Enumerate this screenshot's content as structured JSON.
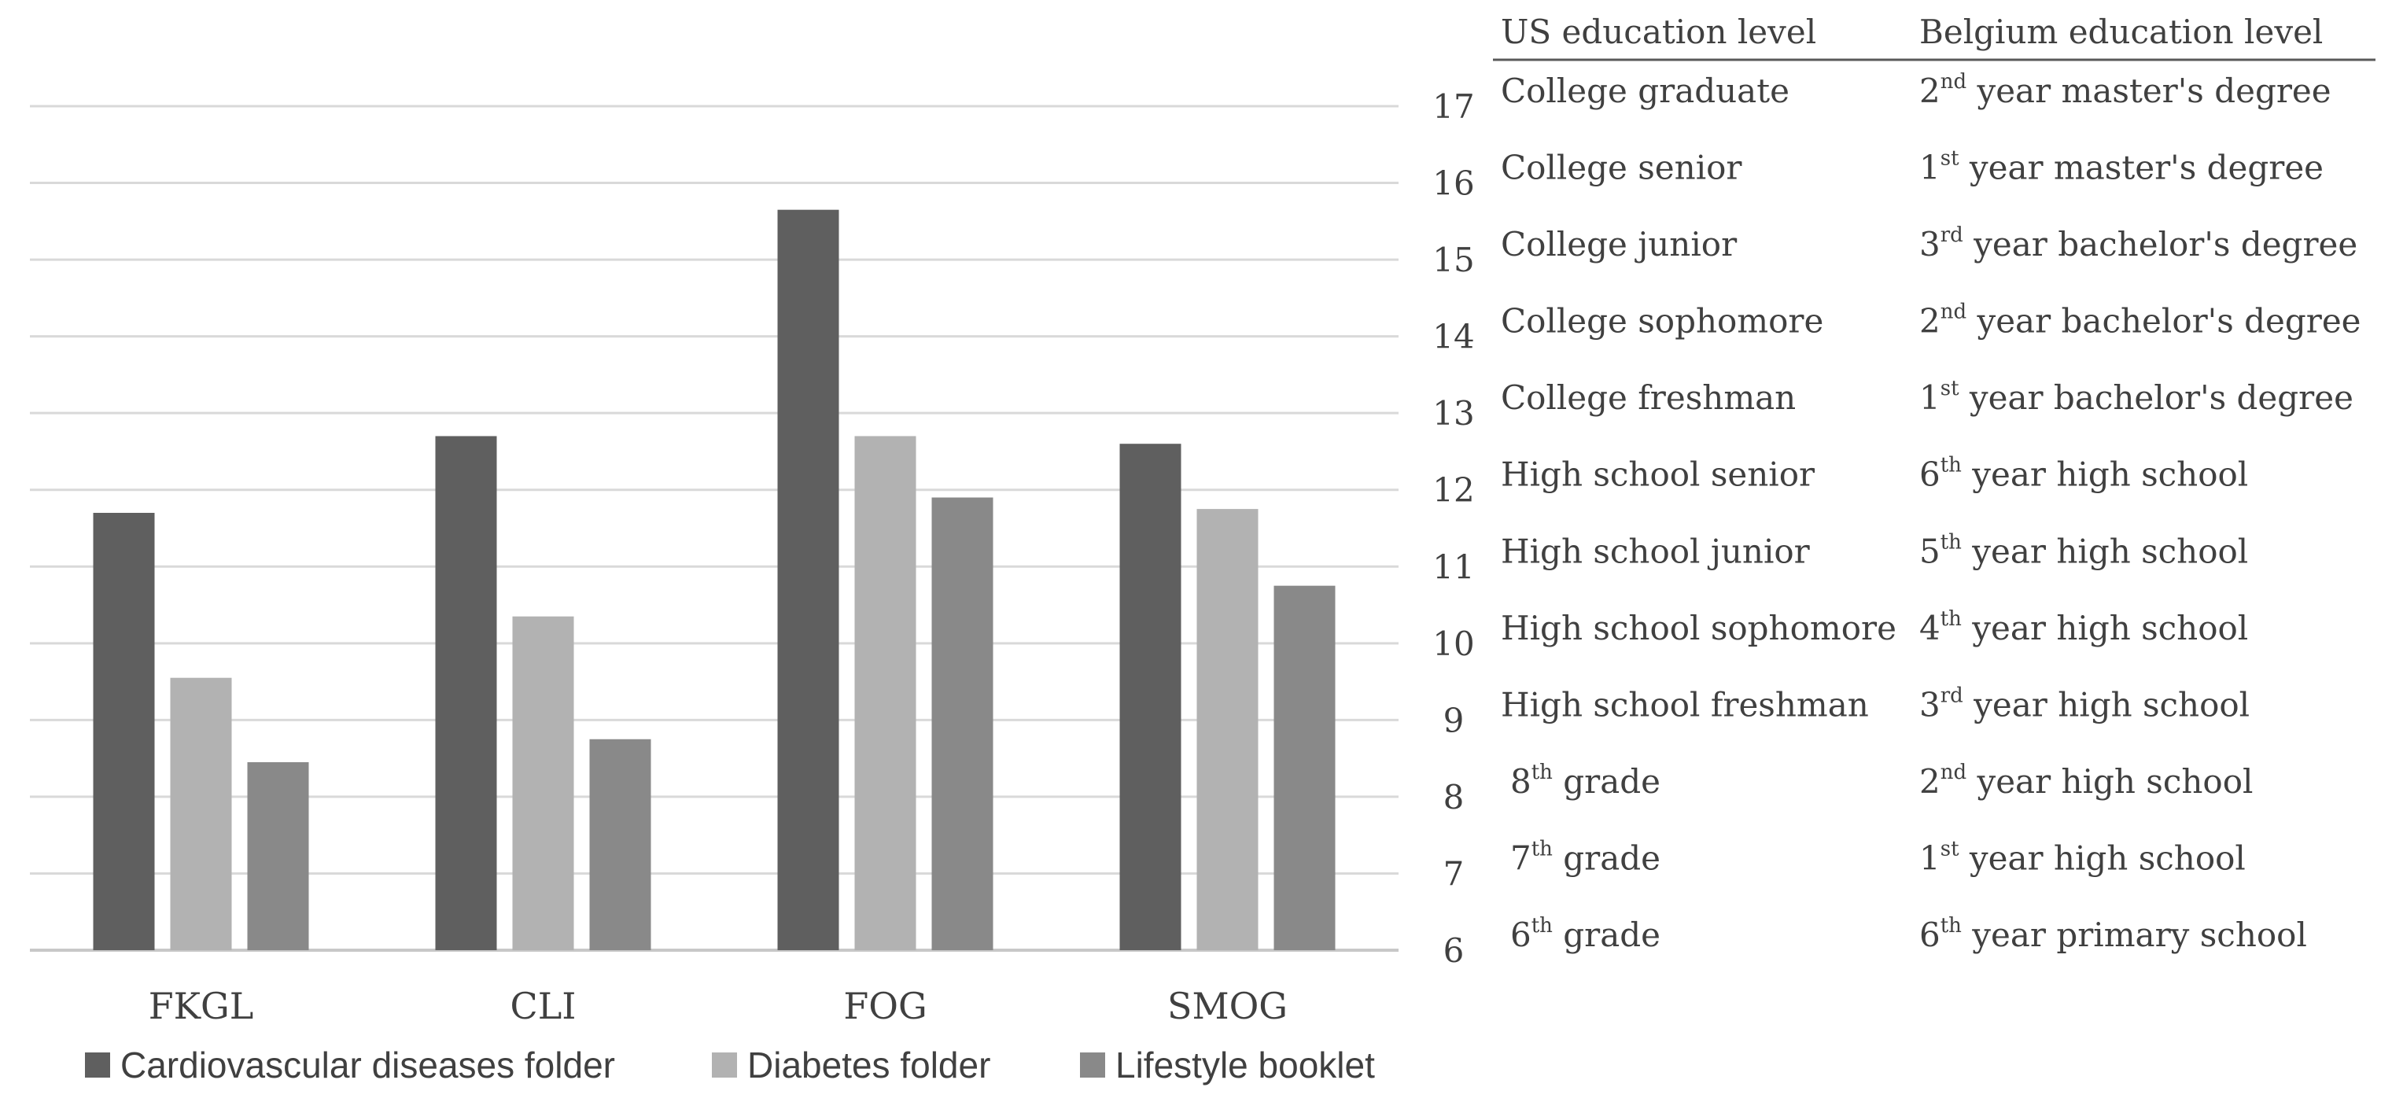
{
  "chart_data": {
    "type": "bar",
    "categories": [
      "FKGL",
      "CLI",
      "FOG",
      "SMOG"
    ],
    "series": [
      {
        "name": "Cardiovascular diseases folder",
        "color": "#5f5f5f",
        "values": [
          11.7,
          12.7,
          15.65,
          12.6
        ]
      },
      {
        "name": "Diabetes folder",
        "color": "#b2b2b2",
        "values": [
          9.55,
          10.35,
          12.7,
          11.75
        ]
      },
      {
        "name": "Lifestyle booklet",
        "color": "#898989",
        "values": [
          8.45,
          8.75,
          11.9,
          10.75
        ]
      }
    ],
    "ylim": [
      6,
      17
    ],
    "yticks": [
      17,
      16,
      15,
      14,
      13,
      12,
      11,
      10,
      9,
      8,
      7,
      6
    ],
    "grid": true,
    "legend": "bottom"
  },
  "table": {
    "headers": [
      "US education level",
      "Belgium education level"
    ],
    "rows": [
      {
        "us": "College graduate",
        "us_sup": "",
        "us_rest": "",
        "be_pre": "2",
        "be_sup": "nd",
        "be_rest": " year master's degree"
      },
      {
        "us": "College senior",
        "us_sup": "",
        "us_rest": "",
        "be_pre": "1",
        "be_sup": "st",
        "be_rest": " year master's degree"
      },
      {
        "us": "College junior",
        "us_sup": "",
        "us_rest": "",
        "be_pre": "3",
        "be_sup": "rd",
        "be_rest": " year bachelor's degree"
      },
      {
        "us": "College sophomore",
        "us_sup": "",
        "us_rest": "",
        "be_pre": "2",
        "be_sup": "nd",
        "be_rest": " year bachelor's degree"
      },
      {
        "us": "College freshman",
        "us_sup": "",
        "us_rest": "",
        "be_pre": "1",
        "be_sup": "st",
        "be_rest": " year bachelor's degree"
      },
      {
        "us": "High school senior",
        "us_sup": "",
        "us_rest": "",
        "be_pre": "6",
        "be_sup": "th",
        "be_rest": " year high school"
      },
      {
        "us": "High school junior",
        "us_sup": "",
        "us_rest": "",
        "be_pre": "5",
        "be_sup": "th",
        "be_rest": " year high school"
      },
      {
        "us": "High school sophomore",
        "us_sup": "",
        "us_rest": "",
        "be_pre": "4",
        "be_sup": "th",
        "be_rest": " year high school"
      },
      {
        "us": "High school freshman",
        "us_sup": "",
        "us_rest": "",
        "be_pre": "3",
        "be_sup": "rd",
        "be_rest": " year high school"
      },
      {
        "us": "8",
        "us_sup": "th",
        "us_rest": " grade",
        "be_pre": "2",
        "be_sup": "nd",
        "be_rest": " year high school"
      },
      {
        "us": "7",
        "us_sup": "th",
        "us_rest": " grade",
        "be_pre": "1",
        "be_sup": "st",
        "be_rest": " year high school"
      },
      {
        "us": "6",
        "us_sup": "th",
        "us_rest": " grade",
        "be_pre": "6",
        "be_sup": "th",
        "be_rest": " year primary school"
      }
    ]
  }
}
